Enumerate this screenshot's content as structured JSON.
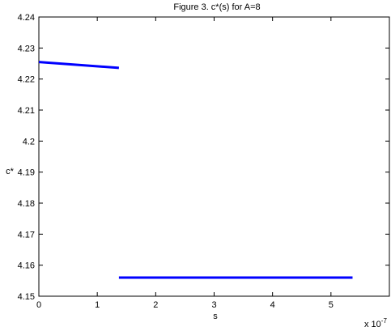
{
  "chart_data": {
    "type": "line",
    "title": "Figure 3. c*(s) for A=8",
    "xlabel": "s",
    "ylabel": "c*",
    "x_multiplier_label": "x 10",
    "x_multiplier_exponent": "-7",
    "xlim": [
      0,
      6
    ],
    "ylim": [
      4.15,
      4.24
    ],
    "xticks": [
      0,
      1,
      2,
      3,
      4,
      5,
      6
    ],
    "xtick_labels": [
      "0",
      "1",
      "2",
      "3",
      "4",
      "5",
      ""
    ],
    "yticks": [
      4.15,
      4.16,
      4.17,
      4.18,
      4.19,
      4.2,
      4.21,
      4.22,
      4.23,
      4.24
    ],
    "ytick_labels": [
      "4.15",
      "4.16",
      "4.17",
      "4.18",
      "4.19",
      "4.2",
      "4.21",
      "4.22",
      "4.23",
      "4.24"
    ],
    "grid": false,
    "series_color": "#0000ff",
    "series": [
      {
        "segments": [
          {
            "x": [
              0.0,
              1.37
            ],
            "y": [
              4.2255,
              4.2236
            ]
          },
          {
            "x": [
              1.37,
              5.37
            ],
            "y": [
              4.156,
              4.156
            ]
          }
        ]
      }
    ]
  }
}
